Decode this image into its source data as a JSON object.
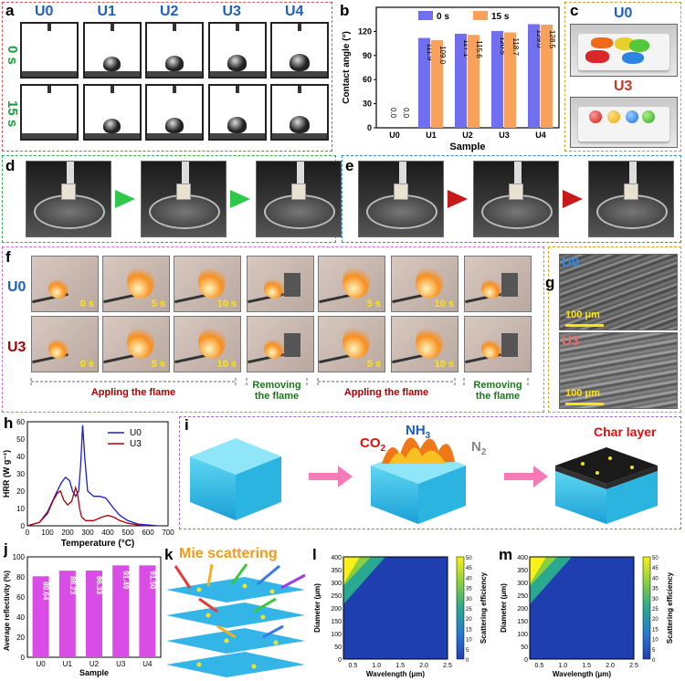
{
  "panel_a": {
    "label": "a",
    "samples": [
      "U0",
      "U1",
      "U2",
      "U3",
      "U4"
    ],
    "rows": [
      "0 s",
      "15 s"
    ],
    "sample_color": "#1f5fbf",
    "row_color": "#1a9e3a"
  },
  "panel_b": {
    "label": "b",
    "chart_data": {
      "type": "bar",
      "title": "",
      "xlabel": "Sample",
      "ylabel": "Contact angle (°)",
      "categories": [
        "U0",
        "U1",
        "U2",
        "U3",
        "U4"
      ],
      "ylim": [
        0,
        150
      ],
      "yticks": [
        0,
        30,
        60,
        90,
        120
      ],
      "series": [
        {
          "name": "0 s",
          "values": [
            0.0,
            111.9,
            117.1,
            120.5,
            129.0
          ],
          "color": "#6f6ff0"
        },
        {
          "name": "15 s",
          "values": [
            0.0,
            109.0,
            115.6,
            118.7,
            128.5
          ],
          "color": "#f7a15a"
        }
      ],
      "value_labels": [
        [
          "0.0",
          "111.9",
          "117.1",
          "120.5",
          "129.0"
        ],
        [
          "0.0",
          "109.0",
          "115.6",
          "118.7",
          "128.5"
        ]
      ]
    }
  },
  "panel_c": {
    "label": "c",
    "top": "U0",
    "bottom": "U3",
    "top_color": "#1f5fbf",
    "bottom_color": "#c0392b"
  },
  "panel_d": {
    "label": "d"
  },
  "panel_e": {
    "label": "e"
  },
  "panel_f": {
    "label": "f",
    "rows": [
      "U0",
      "U3"
    ],
    "row_colors": [
      "#1f5fbf",
      "#b00000"
    ],
    "times_row1": [
      "0 s",
      "5 s",
      "10 s",
      "",
      "5 s",
      "10 s",
      ""
    ],
    "times_row2": [
      "0 s",
      "5 s",
      "10 s",
      "",
      "5 s",
      "10 s",
      ""
    ],
    "captions": [
      "Appling  the flame",
      "Removing the flame",
      "Appling the flame",
      "Removing the flame"
    ]
  },
  "panel_g": {
    "label": "g",
    "top": "U0",
    "bottom": "U3",
    "scale_top": "100 μm",
    "scale_bottom": "100 μm"
  },
  "panel_h": {
    "label": "h",
    "chart_data": {
      "type": "line",
      "xlabel": "Temperature (°C)",
      "ylabel": "HRR (W g⁻¹)",
      "xlim": [
        0,
        700
      ],
      "ylim": [
        0,
        60
      ],
      "xticks": [
        0,
        100,
        200,
        300,
        400,
        500,
        600,
        700
      ],
      "yticks": [
        0,
        10,
        20,
        30,
        40,
        50,
        60
      ],
      "series": [
        {
          "name": "U0",
          "color": "#1a1adb",
          "x": [
            0,
            60,
            100,
            140,
            170,
            190,
            210,
            225,
            240,
            255,
            265,
            275,
            285,
            300,
            330,
            360,
            390,
            410,
            430,
            460,
            500,
            550,
            600,
            650
          ],
          "y": [
            0,
            2,
            8,
            18,
            25,
            28,
            26,
            20,
            17,
            20,
            35,
            58,
            40,
            20,
            17,
            17,
            16,
            13,
            10,
            6,
            3,
            1,
            0.5,
            0
          ]
        },
        {
          "name": "U3",
          "color": "#b00000",
          "x": [
            0,
            60,
            100,
            130,
            150,
            165,
            180,
            200,
            220,
            240,
            250,
            260,
            270,
            290,
            330,
            370,
            400,
            430,
            460,
            500,
            550,
            600
          ],
          "y": [
            0,
            2,
            7,
            15,
            19,
            20,
            15,
            12,
            14,
            22,
            18,
            10,
            5,
            3,
            3,
            5,
            6,
            5,
            3,
            1.5,
            0.5,
            0
          ]
        }
      ]
    }
  },
  "panel_i": {
    "label": "i",
    "co2": "CO",
    "co2_sub": "2",
    "nh3": "NH",
    "nh3_sub": "3",
    "n2": "N",
    "n2_sub": "2",
    "char": "Char layer"
  },
  "panel_j": {
    "label": "j",
    "chart_data": {
      "type": "bar",
      "xlabel": "Sample",
      "ylabel": "Average reflectivity (%)",
      "categories": [
        "U0",
        "U1",
        "U2",
        "U3",
        "U4"
      ],
      "values": [
        80.64,
        86.23,
        86.33,
        91.49,
        91.5
      ],
      "value_labels": [
        "80.64",
        "86.23",
        "86.33",
        "91.49",
        "91.50"
      ],
      "ylim": [
        0,
        100
      ],
      "yticks": [
        0,
        20,
        40,
        60,
        80,
        100
      ],
      "color": "#d94ce6"
    }
  },
  "panel_k": {
    "label": "k",
    "title": "Mie scattering",
    "title_color": "#f29a1a"
  },
  "panel_l": {
    "label": "l",
    "chart_data": {
      "type": "heatmap",
      "xlabel": "Wavelength (μm)",
      "ylabel": "Diameter (μm)",
      "colorbar_label": "Scattering efficiency",
      "xlim": [
        0.3,
        2.5
      ],
      "ylim": [
        0,
        400
      ],
      "xticks": [
        "0.5",
        "1.0",
        "1.5",
        "2.0",
        "2.5"
      ],
      "yticks": [
        "0",
        "50",
        "100",
        "150",
        "200",
        "250",
        "300",
        "350",
        "400"
      ],
      "cbar_ticks": [
        "0",
        "5",
        "10",
        "15",
        "20",
        "25",
        "30",
        "35",
        "40",
        "45",
        "50"
      ]
    }
  },
  "panel_m": {
    "label": "m",
    "chart_data": {
      "type": "heatmap",
      "xlabel": "Wavelength (μm)",
      "ylabel": "Diameter (μm)",
      "colorbar_label": "Scattering efficiency",
      "xlim": [
        0.3,
        2.5
      ],
      "ylim": [
        0,
        400
      ],
      "xticks": [
        "0.5",
        "1.0",
        "1.5",
        "2.0",
        "2.5"
      ],
      "yticks": [
        "0",
        "50",
        "100",
        "150",
        "200",
        "250",
        "300",
        "350",
        "400"
      ],
      "cbar_ticks": [
        "0",
        "5",
        "10",
        "15",
        "20",
        "25",
        "30",
        "35",
        "40",
        "45",
        "50"
      ]
    }
  }
}
